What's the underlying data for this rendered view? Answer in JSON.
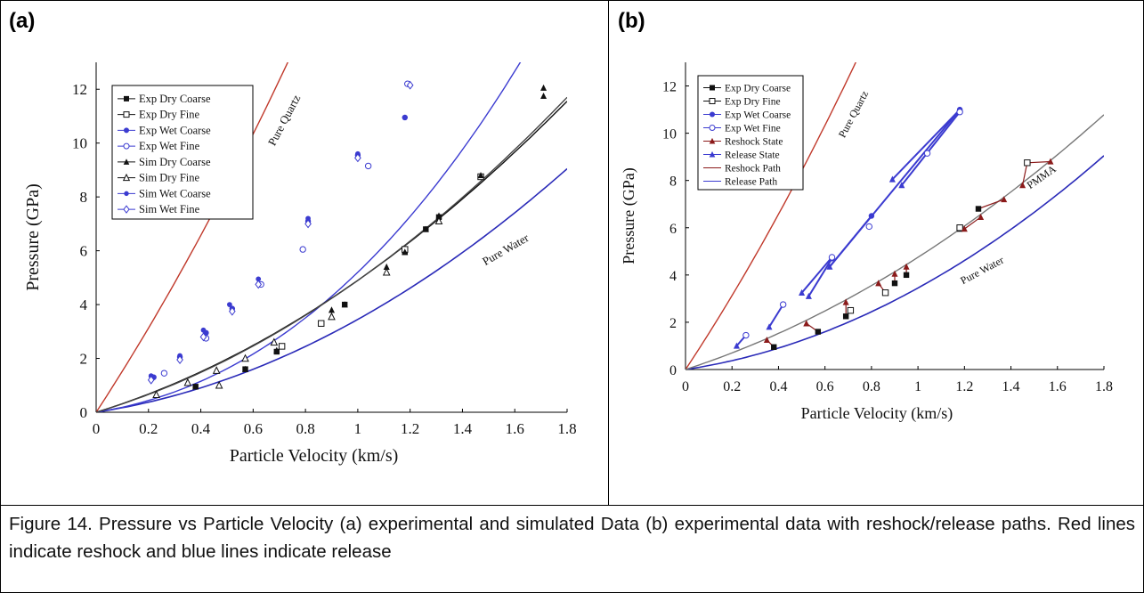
{
  "panels": {
    "a_label": "(a)",
    "b_label": "(b)"
  },
  "caption": "Figure 14. Pressure vs Particle Velocity (a) experimental and simulated Data (b) experimental data with reshock/release paths. Red lines indicate reshock and blue lines indicate release",
  "colors": {
    "quartz": "#c0392b",
    "water": "#2a2ab8",
    "wet": "#3b3bd0",
    "dry": "#111111",
    "pmma": "#777777",
    "reshock": "#8b1a1a"
  },
  "chart_data": [
    {
      "type": "scatter",
      "panel": "a",
      "xlabel": "Particle Velocity (km/s)",
      "ylabel": "Pressure (GPa)",
      "xlim": [
        0,
        1.8
      ],
      "ylim": [
        0,
        13
      ],
      "xticks": [
        "0",
        "0.2",
        "0.4",
        "0.6",
        "0.8",
        "1",
        "1.2",
        "1.4",
        "1.6",
        "1.8"
      ],
      "yticks": [
        "0",
        "2",
        "4",
        "6",
        "8",
        "10",
        "12"
      ],
      "curve_labels": {
        "quartz": "Pure Quartz",
        "water": "Pure Water"
      },
      "legend_position": "top-left",
      "series": [
        {
          "name": "Exp Dry Coarse",
          "marker": "square-filled",
          "color": "dry",
          "points": [
            [
              0.38,
              0.95
            ],
            [
              0.57,
              1.6
            ],
            [
              0.69,
              2.25
            ],
            [
              0.95,
              4.0
            ],
            [
              1.18,
              5.95
            ],
            [
              1.26,
              6.8
            ],
            [
              1.31,
              7.25
            ],
            [
              1.47,
              8.75
            ]
          ]
        },
        {
          "name": "Exp Dry Fine",
          "marker": "square-open",
          "color": "dry",
          "points": [
            [
              0.71,
              2.45
            ],
            [
              0.86,
              3.3
            ],
            [
              1.18,
              6.05
            ],
            [
              1.47,
              8.75
            ]
          ]
        },
        {
          "name": "Exp Wet Coarse",
          "marker": "circle-filled",
          "color": "wet",
          "points": [
            [
              0.22,
              1.3
            ],
            [
              0.32,
              2.05
            ],
            [
              0.42,
              2.95
            ],
            [
              0.52,
              3.85
            ],
            [
              0.63,
              4.75
            ],
            [
              0.81,
              7.1
            ],
            [
              1.0,
              9.55
            ],
            [
              1.18,
              10.95
            ],
            [
              1.19,
              12.2
            ]
          ]
        },
        {
          "name": "Exp Wet Fine",
          "marker": "circle-open",
          "color": "wet",
          "points": [
            [
              0.26,
              1.45
            ],
            [
              0.42,
              2.75
            ],
            [
              0.63,
              4.75
            ],
            [
              0.79,
              6.05
            ],
            [
              1.04,
              9.15
            ],
            [
              1.19,
              12.2
            ]
          ]
        },
        {
          "name": "Sim Dry Coarse",
          "marker": "triangle-filled",
          "color": "dry",
          "points": [
            [
              0.38,
              0.95
            ],
            [
              0.57,
              1.6
            ],
            [
              0.69,
              2.3
            ],
            [
              0.9,
              3.8
            ],
            [
              0.95,
              4.0
            ],
            [
              1.11,
              5.4
            ],
            [
              1.18,
              5.95
            ],
            [
              1.26,
              6.8
            ],
            [
              1.31,
              7.3
            ],
            [
              1.47,
              8.8
            ],
            [
              1.71,
              11.75
            ],
            [
              1.71,
              12.05
            ]
          ]
        },
        {
          "name": "Sim Dry Fine",
          "marker": "triangle-open",
          "color": "dry",
          "points": [
            [
              0.23,
              0.65
            ],
            [
              0.35,
              1.1
            ],
            [
              0.46,
              1.55
            ],
            [
              0.47,
              1.0
            ],
            [
              0.57,
              2.0
            ],
            [
              0.68,
              2.6
            ],
            [
              0.9,
              3.55
            ],
            [
              1.11,
              5.2
            ],
            [
              1.31,
              7.1
            ]
          ]
        },
        {
          "name": "Sim Wet Coarse",
          "marker": "star",
          "color": "wet",
          "points": [
            [
              0.21,
              1.35
            ],
            [
              0.32,
              2.1
            ],
            [
              0.41,
              3.05
            ],
            [
              0.51,
              4.0
            ],
            [
              0.62,
              4.95
            ],
            [
              0.81,
              7.2
            ],
            [
              1.0,
              9.6
            ],
            [
              1.18,
              10.95
            ]
          ]
        },
        {
          "name": "Sim Wet Fine",
          "marker": "diamond-open",
          "color": "wet",
          "points": [
            [
              0.21,
              1.2
            ],
            [
              0.32,
              1.95
            ],
            [
              0.41,
              2.8
            ],
            [
              0.52,
              3.75
            ],
            [
              0.62,
              4.75
            ],
            [
              0.81,
              7.0
            ],
            [
              1.0,
              9.45
            ],
            [
              1.2,
              12.15
            ]
          ]
        }
      ]
    },
    {
      "type": "scatter",
      "panel": "b",
      "xlabel": "Particle Velocity (km/s)",
      "ylabel": "Pressure (GPa)",
      "xlim": [
        0,
        1.8
      ],
      "ylim": [
        0,
        13
      ],
      "xticks": [
        "0",
        "0.2",
        "0.4",
        "0.6",
        "0.8",
        "1",
        "1.2",
        "1.4",
        "1.6",
        "1.8"
      ],
      "yticks": [
        "0",
        "2",
        "4",
        "6",
        "8",
        "10",
        "12"
      ],
      "curve_labels": {
        "quartz": "Pure Quartz",
        "water": "Pure Water",
        "pmma": "PMMA"
      },
      "legend_position": "top-left",
      "series": [
        {
          "name": "Exp Dry Coarse",
          "marker": "square-filled",
          "color": "dry",
          "points": [
            [
              0.38,
              0.95
            ],
            [
              0.57,
              1.6
            ],
            [
              0.69,
              2.25
            ],
            [
              0.9,
              3.65
            ],
            [
              0.95,
              4.0
            ],
            [
              1.18,
              5.95
            ],
            [
              1.26,
              6.8
            ],
            [
              1.47,
              8.75
            ]
          ]
        },
        {
          "name": "Exp Dry Fine",
          "marker": "square-open",
          "color": "dry",
          "points": [
            [
              0.71,
              2.5
            ],
            [
              0.86,
              3.25
            ],
            [
              1.18,
              6.0
            ],
            [
              1.47,
              8.75
            ]
          ]
        },
        {
          "name": "Exp Wet Coarse",
          "marker": "circle-filled",
          "color": "wet",
          "points": [
            [
              0.63,
              4.7
            ],
            [
              0.8,
              6.5
            ],
            [
              1.18,
              11.0
            ]
          ]
        },
        {
          "name": "Exp Wet Fine",
          "marker": "circle-open",
          "color": "wet",
          "points": [
            [
              0.26,
              1.45
            ],
            [
              0.42,
              2.75
            ],
            [
              0.63,
              4.75
            ],
            [
              0.79,
              6.05
            ],
            [
              1.04,
              9.15
            ],
            [
              1.18,
              10.9
            ]
          ]
        },
        {
          "name": "Reshock State",
          "marker": "triangle-filled",
          "color": "reshock",
          "points": [
            [
              0.35,
              1.25
            ],
            [
              0.52,
              1.95
            ],
            [
              0.69,
              2.85
            ],
            [
              0.83,
              3.65
            ],
            [
              0.9,
              4.05
            ],
            [
              0.95,
              4.35
            ],
            [
              1.2,
              5.95
            ],
            [
              1.27,
              6.45
            ],
            [
              1.37,
              7.2
            ],
            [
              1.45,
              7.8
            ],
            [
              1.57,
              8.8
            ]
          ]
        },
        {
          "name": "Release State",
          "marker": "triangle-filled",
          "color": "wet",
          "points": [
            [
              0.22,
              1.0
            ],
            [
              0.36,
              1.8
            ],
            [
              0.5,
              3.25
            ],
            [
              0.53,
              3.1
            ],
            [
              0.62,
              4.35
            ],
            [
              0.89,
              8.05
            ],
            [
              0.93,
              7.8
            ]
          ]
        },
        {
          "name": "Reshock Path",
          "marker": "line",
          "color": "reshock",
          "paths": [
            [
              [
                0.38,
                0.95
              ],
              [
                0.35,
                1.25
              ]
            ],
            [
              [
                0.57,
                1.6
              ],
              [
                0.52,
                1.95
              ]
            ],
            [
              [
                0.69,
                2.25
              ],
              [
                0.69,
                2.85
              ]
            ],
            [
              [
                0.86,
                3.25
              ],
              [
                0.83,
                3.65
              ]
            ],
            [
              [
                0.9,
                3.65
              ],
              [
                0.9,
                4.05
              ]
            ],
            [
              [
                0.95,
                4.0
              ],
              [
                0.95,
                4.35
              ]
            ],
            [
              [
                1.18,
                5.95
              ],
              [
                1.2,
                5.95
              ],
              [
                1.27,
                6.45
              ]
            ],
            [
              [
                1.26,
                6.8
              ],
              [
                1.37,
                7.2
              ]
            ],
            [
              [
                1.47,
                8.75
              ],
              [
                1.45,
                7.8
              ]
            ],
            [
              [
                1.47,
                8.75
              ],
              [
                1.57,
                8.8
              ]
            ]
          ]
        },
        {
          "name": "Release Path",
          "marker": "line",
          "color": "wet",
          "paths": [
            [
              [
                0.26,
                1.45
              ],
              [
                0.22,
                1.0
              ]
            ],
            [
              [
                0.42,
                2.75
              ],
              [
                0.36,
                1.8
              ]
            ],
            [
              [
                0.63,
                4.75
              ],
              [
                0.5,
                3.25
              ]
            ],
            [
              [
                0.63,
                4.7
              ],
              [
                0.53,
                3.1
              ]
            ],
            [
              [
                0.8,
                6.5
              ],
              [
                0.62,
                4.35
              ]
            ],
            [
              [
                1.18,
                11.0
              ],
              [
                0.89,
                8.05
              ]
            ],
            [
              [
                1.18,
                10.9
              ],
              [
                0.93,
                7.8
              ]
            ],
            [
              [
                1.18,
                11.0
              ],
              [
                0.62,
                4.35
              ]
            ]
          ]
        }
      ]
    }
  ]
}
